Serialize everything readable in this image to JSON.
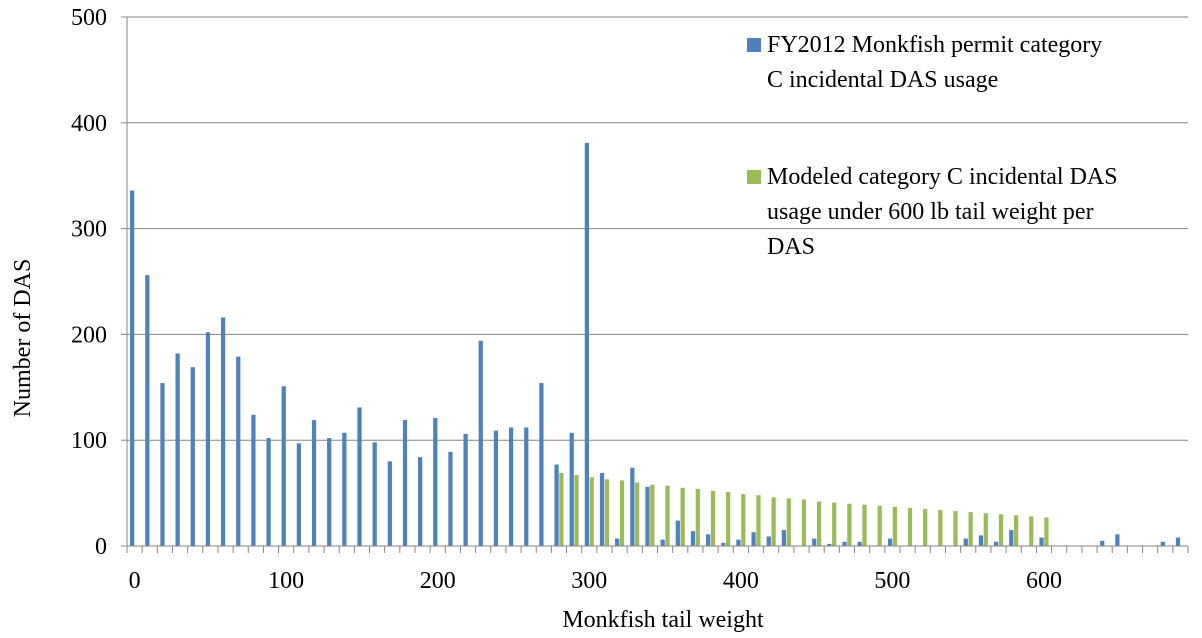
{
  "chart_data": {
    "type": "bar",
    "title": "",
    "xlabel": "Monkfish tail weight",
    "ylabel": "Number of DAS",
    "ylim": [
      0,
      500
    ],
    "yticks": [
      0,
      100,
      200,
      300,
      400,
      500
    ],
    "xticks": [
      0,
      100,
      200,
      300,
      400,
      500,
      600
    ],
    "categories": [
      0,
      10,
      20,
      30,
      40,
      50,
      60,
      70,
      80,
      90,
      100,
      110,
      120,
      130,
      140,
      150,
      160,
      170,
      180,
      190,
      200,
      210,
      220,
      230,
      240,
      250,
      260,
      270,
      280,
      290,
      300,
      310,
      320,
      330,
      340,
      350,
      360,
      370,
      380,
      390,
      400,
      410,
      420,
      430,
      440,
      450,
      460,
      470,
      480,
      490,
      500,
      510,
      520,
      530,
      540,
      550,
      560,
      570,
      580,
      590,
      600,
      610,
      620,
      630,
      640,
      650,
      660,
      670,
      680,
      690
    ],
    "series": [
      {
        "name": "FY2012 Monkfish permit category C incidental DAS usage",
        "color": "#4f81bd",
        "values": [
          336,
          256,
          154,
          182,
          169,
          202,
          216,
          179,
          124,
          102,
          151,
          97,
          119,
          102,
          107,
          131,
          98,
          80,
          119,
          84,
          121,
          89,
          106,
          194,
          109,
          112,
          112,
          154,
          77,
          107,
          381,
          69,
          7,
          74,
          56,
          6,
          24,
          14,
          11,
          3,
          6,
          13,
          9,
          15,
          0,
          7,
          2,
          4,
          4,
          0,
          7,
          0,
          0,
          0,
          0,
          7,
          10,
          4,
          15,
          0,
          8,
          0,
          0,
          0,
          5,
          11,
          0,
          0,
          4,
          8
        ]
      },
      {
        "name": "Modeled category C incidental DAS usage under 600 lb tail weight per DAS",
        "color": "#9bbb59",
        "values": [
          0,
          0,
          0,
          0,
          0,
          0,
          0,
          0,
          0,
          0,
          0,
          0,
          0,
          0,
          0,
          0,
          0,
          0,
          0,
          0,
          0,
          0,
          0,
          0,
          0,
          0,
          0,
          0,
          69,
          67,
          65,
          63,
          62,
          60,
          58,
          57,
          55,
          54,
          52,
          51,
          49,
          48,
          46,
          45,
          44,
          42,
          41,
          40,
          39,
          38,
          37,
          36,
          35,
          34,
          33,
          32,
          31,
          30,
          29,
          28,
          27,
          0,
          0,
          0,
          0,
          0,
          0,
          0,
          0,
          0
        ]
      }
    ],
    "legend": "top-right",
    "grid": "horizontal"
  }
}
